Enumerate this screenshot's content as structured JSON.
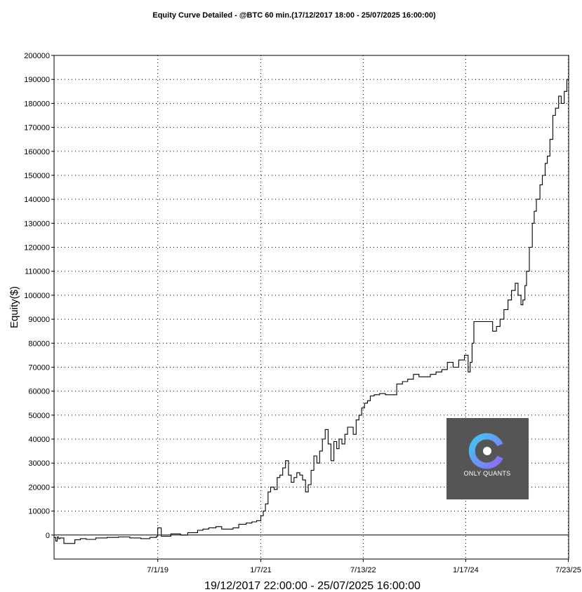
{
  "chart_data": {
    "type": "line",
    "title": "Equity Curve Detailed - @BTC 60 min.(17/12/2017 18:00 - 25/07/2025 16:00:00)",
    "xlabel": "19/12/2017 22:00:00 - 25/07/2025 16:00:00",
    "ylabel": "Equity($)",
    "ylim": [
      -10000,
      200000
    ],
    "yticks": [
      0,
      10000,
      20000,
      30000,
      40000,
      50000,
      60000,
      70000,
      80000,
      90000,
      100000,
      110000,
      120000,
      130000,
      140000,
      150000,
      160000,
      170000,
      180000,
      190000,
      200000
    ],
    "xlim": [
      "2017-12-19",
      "2025-07-25"
    ],
    "xticks": [
      {
        "date": "2019-07-01",
        "label": "7/1/19"
      },
      {
        "date": "2021-01-07",
        "label": "1/7/21"
      },
      {
        "date": "2022-07-13",
        "label": "7/13/22"
      },
      {
        "date": "2024-01-17",
        "label": "1/17/24"
      },
      {
        "date": "2025-07-23",
        "label": "7/23/25"
      }
    ],
    "grid": true,
    "line_color": "#000000",
    "series": [
      {
        "x": [
          "2017-12-19",
          "2017-12-28",
          "2018-01-05",
          "2018-01-12",
          "2018-01-20",
          "2018-02-10",
          "2018-03-10",
          "2018-04-10",
          "2018-05-10",
          "2018-06-10",
          "2018-08-01",
          "2018-10-01",
          "2018-12-01",
          "2019-02-01",
          "2019-04-01",
          "2019-05-20",
          "2019-06-25",
          "2019-07-01",
          "2019-07-20",
          "2019-09-10",
          "2019-11-01",
          "2019-12-10",
          "2020-02-01",
          "2020-03-01",
          "2020-04-01",
          "2020-05-10",
          "2020-06-10",
          "2020-07-10",
          "2020-08-10",
          "2020-09-10",
          "2020-10-20",
          "2020-11-20",
          "2020-12-15",
          "2021-01-07",
          "2021-01-20",
          "2021-02-01",
          "2021-02-15",
          "2021-03-01",
          "2021-03-20",
          "2021-04-05",
          "2021-04-20",
          "2021-05-05",
          "2021-05-20",
          "2021-06-05",
          "2021-06-20",
          "2021-07-05",
          "2021-07-20",
          "2021-08-05",
          "2021-08-20",
          "2021-09-05",
          "2021-09-20",
          "2021-10-05",
          "2021-10-20",
          "2021-11-05",
          "2021-11-20",
          "2021-12-05",
          "2021-12-20",
          "2022-01-05",
          "2022-01-20",
          "2022-02-05",
          "2022-02-20",
          "2022-03-05",
          "2022-03-20",
          "2022-04-05",
          "2022-04-20",
          "2022-05-05",
          "2022-05-20",
          "2022-06-05",
          "2022-06-20",
          "2022-07-05",
          "2022-07-20",
          "2022-08-05",
          "2022-08-20",
          "2022-09-10",
          "2022-10-10",
          "2022-11-10",
          "2022-12-10",
          "2023-01-10",
          "2023-02-10",
          "2023-03-10",
          "2023-04-10",
          "2023-05-10",
          "2023-06-10",
          "2023-07-10",
          "2023-08-10",
          "2023-09-10",
          "2023-10-10",
          "2023-11-10",
          "2023-12-10",
          "2024-01-10",
          "2024-01-30",
          "2024-02-10",
          "2024-02-20",
          "2024-03-01",
          "2024-03-20",
          "2024-05-01",
          "2024-06-10",
          "2024-07-01",
          "2024-07-20",
          "2024-08-10",
          "2024-09-01",
          "2024-09-20",
          "2024-10-10",
          "2024-10-25",
          "2024-11-10",
          "2024-11-20",
          "2024-12-01",
          "2024-12-10",
          "2024-12-25",
          "2025-01-10",
          "2025-01-20",
          "2025-02-01",
          "2025-02-20",
          "2025-03-05",
          "2025-03-20",
          "2025-04-01",
          "2025-04-15",
          "2025-05-01",
          "2025-05-15",
          "2025-06-01",
          "2025-06-15",
          "2025-07-01",
          "2025-07-15",
          "2025-07-25"
        ],
        "y": [
          -1000,
          -2500,
          -800,
          -1500,
          -1200,
          -3500,
          -3500,
          -2000,
          -1500,
          -1800,
          -1200,
          -1000,
          -800,
          -1200,
          -1500,
          -1000,
          -500,
          3000,
          -500,
          500,
          0,
          1000,
          2000,
          2500,
          3000,
          3500,
          2500,
          2500,
          3000,
          4500,
          5000,
          5500,
          6000,
          8000,
          10000,
          13000,
          18000,
          20000,
          19000,
          24000,
          25000,
          28000,
          31000,
          25000,
          22000,
          24000,
          26000,
          25000,
          23000,
          18000,
          21000,
          27000,
          33000,
          30000,
          35000,
          40000,
          44000,
          38000,
          31000,
          39000,
          36000,
          40000,
          38000,
          42000,
          45000,
          45000,
          42000,
          48000,
          50000,
          53000,
          55000,
          56000,
          58000,
          58500,
          59000,
          58500,
          58500,
          63000,
          64000,
          65000,
          67000,
          66000,
          66000,
          67000,
          68000,
          69000,
          72000,
          70000,
          73000,
          75000,
          68000,
          72000,
          80000,
          89000,
          89000,
          89000,
          85000,
          87000,
          90000,
          94000,
          98000,
          102000,
          105000,
          100000,
          96000,
          98000,
          104000,
          110000,
          120000,
          130000,
          135000,
          140000,
          146000,
          150000,
          155000,
          158000,
          165000,
          175000,
          178000,
          183000,
          180000,
          185000,
          190000,
          200000
        ]
      }
    ]
  },
  "logo": {
    "text": "ONLY QUANTS",
    "bg_color": "#555555",
    "icon_gradient": [
      "#45c6f2",
      "#8a6cf2"
    ]
  }
}
